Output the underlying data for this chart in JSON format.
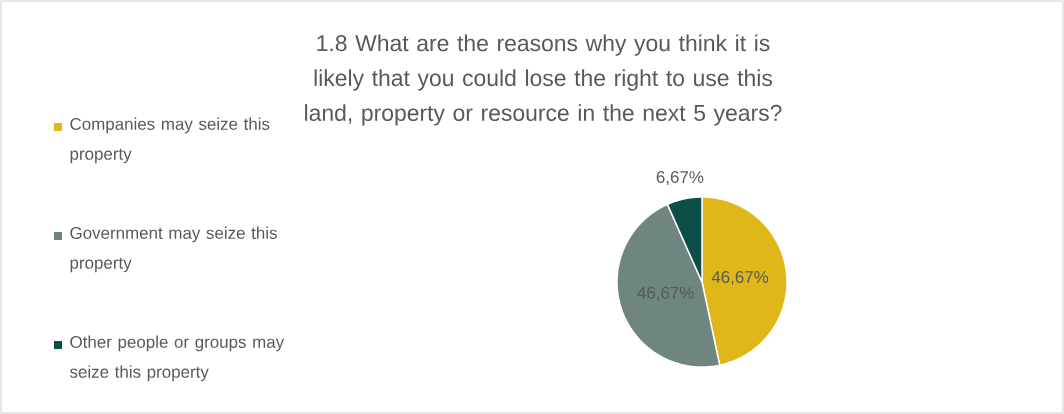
{
  "chart_data": {
    "type": "pie",
    "title": "1.8 What are the reasons why you think it is likely that you could lose the right to use this land, property or resource in the next 5 years?",
    "categories": [
      "Companies may seize this property",
      "Government may seize this property",
      "Other people or groups may seize this property"
    ],
    "values": [
      46.67,
      46.67,
      6.67
    ],
    "colors": [
      "#dfb719",
      "#6e8580",
      "#0b4f48"
    ],
    "value_labels": [
      "46,67%",
      "46,67%",
      "6,67%"
    ],
    "legend": "left"
  }
}
